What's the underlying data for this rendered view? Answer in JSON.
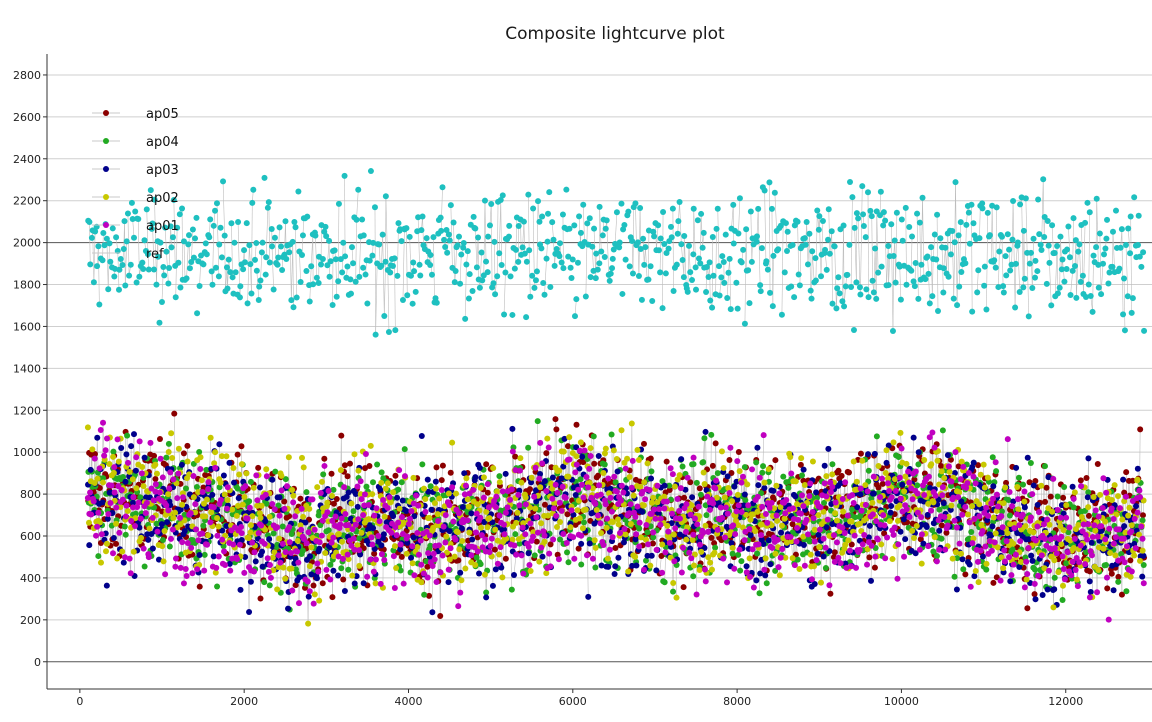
{
  "chart_data": {
    "type": "scatter",
    "title": "Composite lightcurve plot",
    "xlabel": "",
    "ylabel": "",
    "xlim": [
      -400,
      13050
    ],
    "ylim": [
      -130,
      2900
    ],
    "x_ticks": [
      0,
      2000,
      4000,
      6000,
      8000,
      10000,
      12000
    ],
    "y_ticks": [
      0,
      200,
      400,
      600,
      800,
      1000,
      1200,
      1400,
      1600,
      1800,
      2000,
      2200,
      2400,
      2600,
      2800
    ],
    "grid": true,
    "legend_position": "top-left",
    "x": [
      0,
      500,
      1000,
      1500,
      2000,
      2500,
      3000,
      3500,
      4000,
      4500,
      5000,
      5500,
      6000,
      6500,
      7000,
      7500,
      8000,
      8500,
      9000,
      9500,
      10000,
      10500,
      11000,
      11500,
      12000,
      12500,
      13000
    ],
    "series": [
      {
        "name": "ap05",
        "color": "#8b0000",
        "values": [
          800,
          790,
          760,
          740,
          720,
          600,
          640,
          660,
          650,
          640,
          680,
          700,
          820,
          760,
          700,
          690,
          720,
          700,
          690,
          720,
          800,
          760,
          740,
          620,
          600,
          640,
          700
        ]
      },
      {
        "name": "ap04",
        "color": "#22aa22",
        "values": [
          790,
          780,
          750,
          730,
          710,
          590,
          630,
          650,
          640,
          630,
          670,
          690,
          810,
          750,
          690,
          680,
          710,
          690,
          680,
          710,
          790,
          750,
          730,
          610,
          590,
          630,
          690
        ]
      },
      {
        "name": "ap03",
        "color": "#00008b",
        "values": [
          780,
          770,
          740,
          720,
          700,
          580,
          620,
          640,
          630,
          620,
          660,
          680,
          800,
          740,
          680,
          670,
          700,
          680,
          670,
          700,
          780,
          740,
          720,
          600,
          580,
          620,
          680
        ]
      },
      {
        "name": "ap02",
        "color": "#c8c800",
        "values": [
          800,
          795,
          765,
          745,
          725,
          605,
          645,
          665,
          655,
          645,
          685,
          705,
          825,
          765,
          705,
          695,
          725,
          705,
          695,
          725,
          805,
          765,
          745,
          625,
          605,
          645,
          705
        ]
      },
      {
        "name": "ap01",
        "color": "#c000c0",
        "values": [
          770,
          760,
          730,
          710,
          690,
          570,
          610,
          630,
          620,
          610,
          650,
          670,
          790,
          730,
          670,
          660,
          690,
          670,
          660,
          690,
          770,
          730,
          710,
          590,
          570,
          610,
          670
        ]
      },
      {
        "name": "ref",
        "color": "#1ec0c0",
        "values": [
          1950,
          1940,
          1960,
          1950,
          1940,
          1950,
          1960,
          1950,
          1940,
          1950,
          1960,
          1950,
          1940,
          1950,
          1960,
          1950,
          1940,
          1950,
          1960,
          1950,
          1940,
          1950,
          1960,
          1950,
          1940,
          1950,
          1960
        ]
      }
    ],
    "colors": {
      "grid": "#cfcfcf",
      "axis": "#333333",
      "connector": "#bdbdbd"
    }
  }
}
